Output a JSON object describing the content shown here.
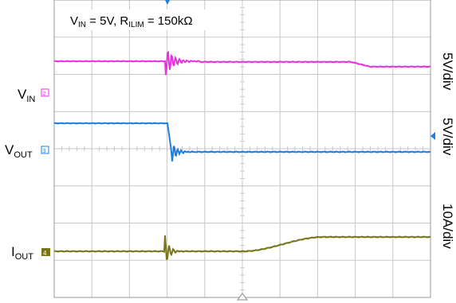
{
  "header": {
    "vin_label": "V",
    "vin_sub": "IN",
    "vin_value": " = 5V, R",
    "rilim_sub": "ILIM",
    "rilim_value": " = 150kΩ"
  },
  "channels": [
    {
      "name": "V",
      "sub": "IN",
      "scale": "5V/div",
      "color": "#e831e0",
      "marker": "2"
    },
    {
      "name": "V",
      "sub": "OUT",
      "scale": "5V/div",
      "color": "#1d7fe3",
      "marker": "3"
    },
    {
      "name": "I",
      "sub": "OUT",
      "scale": "10A/div",
      "color": "#7a7419",
      "marker": "4"
    }
  ],
  "colors": {
    "grid": "#c8c8c8",
    "frame": "#9a9a9a",
    "vin": "#e831e0",
    "vout": "#1d7fe3",
    "iout": "#7a7419",
    "trigger": "#1d7fe3"
  },
  "grid": {
    "divisions_x": 10,
    "divisions_y": 8,
    "subdivisions": 5
  }
}
